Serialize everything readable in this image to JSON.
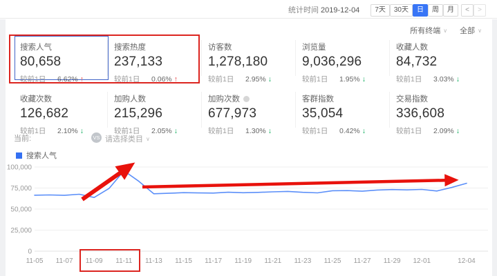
{
  "topbar": {
    "stat_time_label": "统计时间",
    "stat_date": "2019-12-04",
    "range_buttons": [
      {
        "label": "7天",
        "active": false
      },
      {
        "label": "30天",
        "active": false
      },
      {
        "label": "日",
        "active": true
      },
      {
        "label": "周",
        "active": false
      },
      {
        "label": "月",
        "active": false
      }
    ],
    "nav_buttons": [
      {
        "label": "<",
        "disabled": false
      },
      {
        "label": ">",
        "disabled": true
      }
    ]
  },
  "filters": {
    "terminal": "所有终端",
    "scope": "全部"
  },
  "metrics": [
    {
      "label": "搜索人气",
      "value": "80,658",
      "compare_label": "较前1日",
      "change": "6.62%",
      "direction": "up",
      "selected": true
    },
    {
      "label": "搜索热度",
      "value": "237,133",
      "compare_label": "较前1日",
      "change": "0.06%",
      "direction": "up",
      "selected": false
    },
    {
      "label": "访客数",
      "value": "1,278,180",
      "compare_label": "较前1日",
      "change": "2.95%",
      "direction": "down",
      "selected": false
    },
    {
      "label": "浏览量",
      "value": "9,036,296",
      "compare_label": "较前1日",
      "change": "1.95%",
      "direction": "down",
      "selected": false
    },
    {
      "label": "收藏人数",
      "value": "84,732",
      "compare_label": "较前1日",
      "change": "3.03%",
      "direction": "down",
      "selected": false
    },
    {
      "label": "收藏次数",
      "value": "126,682",
      "compare_label": "较前1日",
      "change": "2.10%",
      "direction": "down",
      "selected": false
    },
    {
      "label": "加购人数",
      "value": "215,296",
      "compare_label": "较前1日",
      "change": "2.05%",
      "direction": "down",
      "selected": false
    },
    {
      "label": "加购次数",
      "value": "677,973",
      "compare_label": "较前1日",
      "change": "1.30%",
      "direction": "down",
      "selected": false,
      "has_info": true
    },
    {
      "label": "客群指数",
      "value": "35,054",
      "compare_label": "较前1日",
      "change": "0.42%",
      "direction": "down",
      "selected": false
    },
    {
      "label": "交易指数",
      "value": "336,608",
      "compare_label": "较前1日",
      "change": "2.09%",
      "direction": "down",
      "selected": false
    }
  ],
  "compare_bar": {
    "current_label": "当前:",
    "vs_label": "VS",
    "select_placeholder": "请选择类目"
  },
  "legend": {
    "series": "搜索人气",
    "color": "#3470f2"
  },
  "chart_data": {
    "type": "line",
    "title": "",
    "xlabel": "",
    "ylabel": "",
    "ylim": [
      0,
      100000
    ],
    "grid": true,
    "legend_position": "top-left",
    "x": [
      "11-05",
      "11-06",
      "11-07",
      "11-08",
      "11-09",
      "11-10",
      "11-11",
      "11-12",
      "11-13",
      "11-14",
      "11-15",
      "11-16",
      "11-17",
      "11-18",
      "11-19",
      "11-20",
      "11-21",
      "11-22",
      "11-23",
      "11-24",
      "11-25",
      "11-26",
      "11-27",
      "11-28",
      "11-29",
      "11-30",
      "12-01",
      "12-02",
      "12-03",
      "12-04"
    ],
    "series": [
      {
        "name": "搜索人气",
        "color": "#5b8ff9",
        "values": [
          66500,
          66800,
          66300,
          67600,
          63800,
          74500,
          95500,
          83000,
          68200,
          68800,
          69500,
          69200,
          69000,
          70000,
          69400,
          69800,
          70500,
          71000,
          69900,
          69300,
          71800,
          72000,
          71200,
          72600,
          73200,
          72800,
          73400,
          71500,
          75650,
          80658
        ]
      }
    ],
    "x_tick_indices": [
      0,
      2,
      4,
      6,
      8,
      10,
      12,
      14,
      16,
      18,
      20,
      22,
      24,
      26,
      29
    ],
    "y_ticks": [
      0,
      25000,
      50000,
      75000,
      100000
    ],
    "y_tick_labels": [
      "0",
      "25,000",
      "50,000",
      "75,000",
      "100,000"
    ],
    "annotations": [
      {
        "type": "rect",
        "target": "metric-cards-search-popularity-and-heat"
      },
      {
        "type": "arrow",
        "target": "spike-to-11-11-peak"
      },
      {
        "type": "arrow",
        "target": "flat-trend-after-peak"
      },
      {
        "type": "rect",
        "target": "x-axis-labels-11-09-to-11-11"
      }
    ]
  }
}
